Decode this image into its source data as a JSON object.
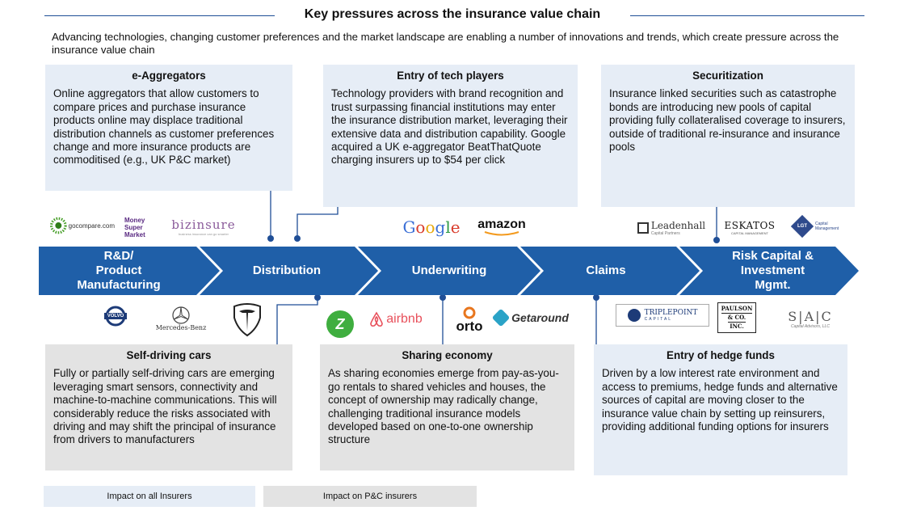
{
  "title": "Key pressures across the insurance value chain",
  "subtitle": "Advancing technologies, changing customer preferences and the market landscape are enabling a number of innovations and trends, which create pressure across the insurance value chain",
  "colors": {
    "accent": "#1f5fa8",
    "blue_box": "#e6edf6",
    "grey_box": "#e3e3e3"
  },
  "top_boxes": [
    {
      "title": "e-Aggregators",
      "body": "Online aggregators that allow customers to compare prices and purchase insurance products online may displace traditional distribution channels as customer preferences change and more insurance products are commoditised (e.g., UK P&C market)"
    },
    {
      "title": "Entry of tech players",
      "body": "Technology providers with brand recognition and trust surpassing financial institutions may enter the insurance distribution market, leveraging their extensive data and distribution capability. Google acquired a UK e-aggregator BeatThatQuote charging insurers up to $54 per click"
    },
    {
      "title": "Securitization",
      "body": "Insurance linked securities such as catastrophe bonds are introducing new pools of capital providing fully collateralised coverage to insurers, outside of traditional re-insurance and insurance pools"
    }
  ],
  "bottom_boxes": [
    {
      "title": "Self-driving cars",
      "body": "Fully or partially self-driving cars are emerging leveraging smart sensors, connectivity and machine-to-machine communications. This will considerably reduce the risks associated with driving and may shift the principal of insurance from drivers to manufacturers"
    },
    {
      "title": "Sharing economy",
      "body": "As sharing economies emerge from pay-as-you-go rentals to shared vehicles and houses, the concept of ownership may radically change, challenging traditional insurance models developed based on one-to-one ownership structure"
    },
    {
      "title": "Entry of hedge funds",
      "body": "Driven by a low interest rate environment and access to premiums, hedge funds and alternative sources of capital are moving closer to the insurance value chain by setting up reinsurers, providing additional funding options for insurers"
    }
  ],
  "stages": [
    {
      "label": "R&D/\nProduct\nManufacturing"
    },
    {
      "label": "Distribution"
    },
    {
      "label": "Underwriting"
    },
    {
      "label": "Claims"
    },
    {
      "label": "Risk Capital &\nInvestment\nMgmt."
    }
  ],
  "logos_top": {
    "gocompare": "gocompare.com",
    "msm": [
      "Money",
      "Super",
      "Market"
    ],
    "bizinsure": "bizinsure",
    "bizinsure_tag": "business insurance can go smarter",
    "google": [
      "G",
      "o",
      "o",
      "g",
      "l",
      "e"
    ],
    "amazon": "amazon",
    "leadenhall": "Leadenhall",
    "leadenhall_tag": "Capital Partners",
    "eskatos": "ESKATOS",
    "eskatos_tag": "CAPITAL MANAGEMENT",
    "lgt": "LGT",
    "lgt_tag": "Capital Management"
  },
  "logos_bottom": {
    "volvo": "VOLVO",
    "mercedes": "Mercedes-Benz",
    "zipcar": "Z",
    "airbnb": "airbnb",
    "orto": "orto",
    "getaround": "Getaround",
    "triplepoint": "TRIPLEPOINT",
    "triplepoint_tag": "CAPITAL",
    "paulson": [
      "PAULSON",
      "& CO.",
      "INC."
    ],
    "sac": "S|A|C",
    "sac_tag": "Capital Advisors, LLC"
  },
  "legend": [
    {
      "label": "Impact on all Insurers"
    },
    {
      "label": "Impact on P&C insurers"
    }
  ]
}
